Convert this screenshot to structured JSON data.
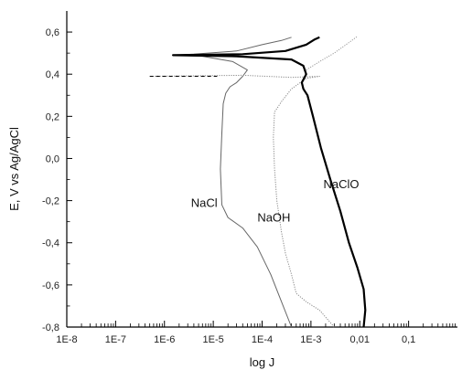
{
  "chart_data": {
    "type": "line",
    "title": "",
    "xlabel": "log J",
    "ylabel": "E, V vs Ag/AgCl",
    "x_scale": "log",
    "xlim": [
      1e-08,
      1.0
    ],
    "ylim": [
      -0.8,
      0.7
    ],
    "x_ticks": [
      1e-08,
      1e-07,
      1e-06,
      1e-05,
      0.0001,
      0.001,
      0.01,
      0.1
    ],
    "x_tick_labels": [
      "1E-8",
      "1E-7",
      "1E-6",
      "1E-5",
      "1E-4",
      "1E-3",
      "0,01",
      "0,1"
    ],
    "y_ticks": [
      -0.8,
      -0.6,
      -0.4,
      -0.2,
      0.0,
      0.2,
      0.4,
      0.6
    ],
    "y_tick_labels": [
      "-0,8",
      "-0,6",
      "-0,4",
      "-0,2",
      "0,0",
      "0,2",
      "0,4",
      "0,6"
    ],
    "grid": false,
    "legend": "none",
    "series": [
      {
        "name": "NaCl",
        "color": "#666666",
        "style": "thin",
        "points": [
          [
            0.0004,
            -0.8
          ],
          [
            0.00025,
            -0.68
          ],
          [
            0.00015,
            -0.55
          ],
          [
            8e-05,
            -0.42
          ],
          [
            4e-05,
            -0.33
          ],
          [
            2e-05,
            -0.28
          ],
          [
            1.5e-05,
            -0.22
          ],
          [
            1.4e-05,
            -0.05
          ],
          [
            1.5e-05,
            0.12
          ],
          [
            1.6e-05,
            0.26
          ],
          [
            1.8e-05,
            0.31
          ],
          [
            2.2e-05,
            0.34
          ],
          [
            3e-05,
            0.36
          ],
          [
            4e-05,
            0.39
          ],
          [
            5e-05,
            0.42
          ],
          [
            2.5e-05,
            0.46
          ],
          [
            6e-06,
            0.485
          ],
          [
            1.5e-06,
            0.49
          ],
          [
            4e-06,
            0.495
          ],
          [
            3e-05,
            0.51
          ],
          [
            0.0001,
            0.54
          ],
          [
            0.00025,
            0.56
          ],
          [
            0.0004,
            0.575
          ]
        ]
      },
      {
        "name": "NaOH",
        "color": "#888888",
        "style": "dotted",
        "points": [
          [
            0.003,
            -0.8
          ],
          [
            0.0015,
            -0.72
          ],
          [
            0.0008,
            -0.68
          ],
          [
            0.0005,
            -0.64
          ],
          [
            0.0004,
            -0.55
          ],
          [
            0.0003,
            -0.45
          ],
          [
            0.00025,
            -0.35
          ],
          [
            0.0002,
            -0.2
          ],
          [
            0.00018,
            -0.05
          ],
          [
            0.00017,
            0.1
          ],
          [
            0.00018,
            0.22
          ],
          [
            0.00025,
            0.27
          ],
          [
            0.0004,
            0.33
          ],
          [
            0.0008,
            0.38
          ],
          [
            0.0015,
            0.39
          ],
          [
            0.0004,
            0.385
          ],
          [
            0.00012,
            0.39
          ],
          [
            4e-05,
            0.395
          ],
          [
            5e-07,
            0.39
          ]
        ]
      },
      {
        "name": "NaClO",
        "color": "#000000",
        "style": "thick",
        "points": [
          [
            0.012,
            -0.8
          ],
          [
            0.013,
            -0.72
          ],
          [
            0.012,
            -0.62
          ],
          [
            0.009,
            -0.52
          ],
          [
            0.006,
            -0.4
          ],
          [
            0.004,
            -0.25
          ],
          [
            0.0025,
            -0.1
          ],
          [
            0.0016,
            0.05
          ],
          [
            0.0011,
            0.2
          ],
          [
            0.00085,
            0.3
          ],
          [
            0.0007,
            0.33
          ],
          [
            0.00065,
            0.36
          ],
          [
            0.0008,
            0.4
          ],
          [
            0.0007,
            0.44
          ],
          [
            0.0004,
            0.47
          ],
          [
            3e-05,
            0.485
          ],
          [
            1.5e-06,
            0.49
          ],
          [
            4e-05,
            0.495
          ],
          [
            0.0003,
            0.51
          ],
          [
            0.0008,
            0.54
          ],
          [
            0.0012,
            0.565
          ],
          [
            0.0015,
            0.575
          ]
        ]
      }
    ],
    "extra_curve": {
      "color": "#999999",
      "points": [
        [
          0.0008,
          0.42
        ],
        [
          0.0015,
          0.46
        ],
        [
          0.003,
          0.5
        ],
        [
          0.006,
          0.55
        ],
        [
          0.009,
          0.58
        ]
      ]
    },
    "annotations": [
      {
        "text": "NaCl",
        "x": 3.5e-06,
        "y": -0.23
      },
      {
        "text": "NaOH",
        "x": 8e-05,
        "y": -0.3
      },
      {
        "text": "NaClO",
        "x": 0.0018,
        "y": -0.14
      }
    ]
  }
}
